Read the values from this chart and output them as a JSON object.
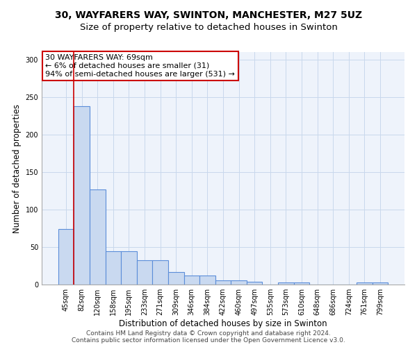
{
  "title_line1": "30, WAYFARERS WAY, SWINTON, MANCHESTER, M27 5UZ",
  "title_line2": "Size of property relative to detached houses in Swinton",
  "xlabel": "Distribution of detached houses by size in Swinton",
  "ylabel": "Number of detached properties",
  "categories": [
    "45sqm",
    "82sqm",
    "120sqm",
    "158sqm",
    "195sqm",
    "233sqm",
    "271sqm",
    "309sqm",
    "346sqm",
    "384sqm",
    "422sqm",
    "460sqm",
    "497sqm",
    "535sqm",
    "573sqm",
    "610sqm",
    "648sqm",
    "686sqm",
    "724sqm",
    "761sqm",
    "799sqm"
  ],
  "values": [
    74,
    238,
    127,
    44,
    44,
    32,
    32,
    17,
    12,
    12,
    6,
    6,
    4,
    0,
    3,
    3,
    0,
    0,
    0,
    3,
    3
  ],
  "bar_color": "#c9d9f0",
  "bar_edge_color": "#5b8dd9",
  "bar_edge_width": 0.8,
  "vline_x": 0.5,
  "vline_color": "#cc0000",
  "annotation_text": "30 WAYFARERS WAY: 69sqm\n← 6% of detached houses are smaller (31)\n94% of semi-detached houses are larger (531) →",
  "annotation_box_color": "#ffffff",
  "annotation_box_edge_color": "#cc0000",
  "ylim": [
    0,
    310
  ],
  "yticks": [
    0,
    50,
    100,
    150,
    200,
    250,
    300
  ],
  "grid_color": "#c8d8ec",
  "bg_color": "#eef3fb",
  "footer_line1": "Contains HM Land Registry data © Crown copyright and database right 2024.",
  "footer_line2": "Contains public sector information licensed under the Open Government Licence v3.0.",
  "title1_fontsize": 10,
  "title2_fontsize": 9.5,
  "xlabel_fontsize": 8.5,
  "ylabel_fontsize": 8.5,
  "tick_fontsize": 7,
  "annotation_fontsize": 8,
  "footer_fontsize": 6.5
}
